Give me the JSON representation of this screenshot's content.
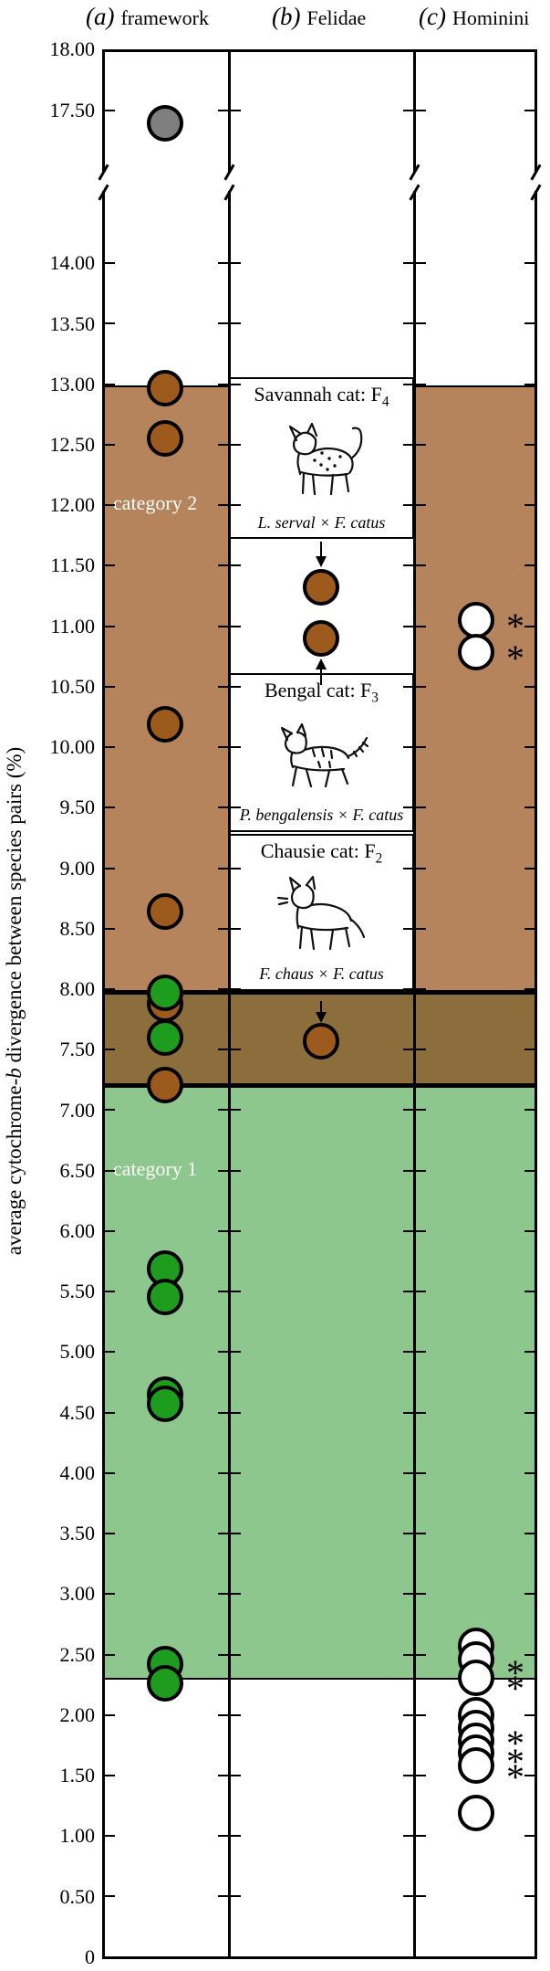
{
  "chart_data": {
    "type": "scatter",
    "title": "",
    "ylabel": "average cytochrome-b divergence between species pairs (%)",
    "ylabel_parts": [
      "average cytochrome-",
      "b",
      " divergence between species pairs (%)"
    ],
    "ylim": [
      0,
      18
    ],
    "axis_break_between": [
      14.6,
      17.0
    ],
    "grid": false,
    "yticks": [
      {
        "v": 18.0,
        "label": "18.00"
      },
      {
        "v": 17.5,
        "label": "17.50"
      },
      {
        "v": 14.0,
        "label": "14.00"
      },
      {
        "v": 13.5,
        "label": "13.50"
      },
      {
        "v": 13.0,
        "label": "13.00"
      },
      {
        "v": 12.5,
        "label": "12.50"
      },
      {
        "v": 12.0,
        "label": "12.00"
      },
      {
        "v": 11.5,
        "label": "11.50"
      },
      {
        "v": 11.0,
        "label": "11.00"
      },
      {
        "v": 10.5,
        "label": "10.50"
      },
      {
        "v": 10.0,
        "label": "10.00"
      },
      {
        "v": 9.5,
        "label": "9.50"
      },
      {
        "v": 9.0,
        "label": "9.00"
      },
      {
        "v": 8.5,
        "label": "8.50"
      },
      {
        "v": 8.0,
        "label": "8.00"
      },
      {
        "v": 7.5,
        "label": "7.50"
      },
      {
        "v": 7.0,
        "label": "7.00"
      },
      {
        "v": 6.5,
        "label": "6.50"
      },
      {
        "v": 6.0,
        "label": "6.00"
      },
      {
        "v": 5.5,
        "label": "5.50"
      },
      {
        "v": 5.0,
        "label": "5.00"
      },
      {
        "v": 4.5,
        "label": "4.50"
      },
      {
        "v": 4.0,
        "label": "4.00"
      },
      {
        "v": 3.5,
        "label": "3.50"
      },
      {
        "v": 3.0,
        "label": "3.00"
      },
      {
        "v": 2.5,
        "label": "2.50"
      },
      {
        "v": 2.0,
        "label": "2.00"
      },
      {
        "v": 1.5,
        "label": "1.50"
      },
      {
        "v": 1.0,
        "label": "1.00"
      },
      {
        "v": 0.5,
        "label": "0.50"
      },
      {
        "v": 0.0,
        "label": "0"
      }
    ],
    "colors": {
      "category2_band": "#b5845c",
      "overlap_band": "#8c6d3c",
      "category1_band": "#8dc78d",
      "brown_point": "#9c5a1d",
      "green_point": "#1e9c1e",
      "gray_point": "#7f7f7f",
      "white_point": "#ffffff"
    },
    "bands": [
      {
        "name": "category 2",
        "label": "category 2",
        "label_v": 12.0,
        "top": 12.98,
        "bottom": 7.975,
        "color_key": "category2_band"
      },
      {
        "name": "overlap",
        "label": "",
        "top": 7.975,
        "bottom": 7.205,
        "color_key": "overlap_band"
      },
      {
        "name": "category 1",
        "label": "category 1",
        "label_v": 6.5,
        "top": 7.205,
        "bottom": 2.3,
        "color_key": "category1_band"
      }
    ],
    "panels": [
      {
        "key": "a",
        "prefix": "(a)",
        "label": "framework",
        "points": [
          {
            "v": 17.4,
            "c": "gray"
          },
          {
            "v": 12.97,
            "c": "brown"
          },
          {
            "v": 12.55,
            "c": "brown"
          },
          {
            "v": 10.19,
            "c": "brown"
          },
          {
            "v": 8.64,
            "c": "brown"
          },
          {
            "v": 7.88,
            "c": "brown"
          },
          {
            "v": 7.97,
            "c": "green"
          },
          {
            "v": 7.6,
            "c": "green"
          },
          {
            "v": 7.21,
            "c": "brown"
          },
          {
            "v": 5.69,
            "c": "green"
          },
          {
            "v": 5.46,
            "c": "green"
          },
          {
            "v": 4.65,
            "c": "green"
          },
          {
            "v": 4.57,
            "c": "green"
          },
          {
            "v": 2.42,
            "c": "green"
          },
          {
            "v": 2.26,
            "c": "green"
          }
        ]
      },
      {
        "key": "b",
        "prefix": "(b)",
        "label": "Felidae",
        "points": [
          {
            "v": 11.32,
            "c": "brown"
          },
          {
            "v": 10.9,
            "c": "brown"
          },
          {
            "v": 7.57,
            "c": "brown"
          }
        ],
        "insets": [
          {
            "title": "Savannah cat: F",
            "subscript": "4",
            "caption": "L. serval × F. catus",
            "icon": "serval-cat",
            "top_v": 13.06,
            "bottom_v": 11.72
          },
          {
            "title": "Bengal cat: F",
            "subscript": "3",
            "caption": "P. bengalensis × F. catus",
            "icon": "bengal-cat",
            "top_v": 10.61,
            "bottom_v": 9.3
          },
          {
            "title": "Chausie cat: F",
            "subscript": "2",
            "caption": "F. chaus × F. catus",
            "icon": "chausie-cat",
            "top_v": 9.285,
            "bottom_v": 7.985
          }
        ],
        "arrows": [
          {
            "dir": "down",
            "from_v": 11.7,
            "tip_v": 11.49
          },
          {
            "dir": "up",
            "tip_v": 10.73,
            "from_v": 10.62
          },
          {
            "dir": "down",
            "from_v": 7.9,
            "tip_v": 7.72
          }
        ]
      },
      {
        "key": "c",
        "prefix": "(c)",
        "label": "Hominini",
        "points": [
          {
            "v": 11.05,
            "c": "white"
          },
          {
            "v": 10.79,
            "c": "white"
          },
          {
            "v": 2.57,
            "c": "white"
          },
          {
            "v": 2.46,
            "c": "white"
          },
          {
            "v": 2.31,
            "c": "white"
          },
          {
            "v": 2.0,
            "c": "white"
          },
          {
            "v": 1.89,
            "c": "white"
          },
          {
            "v": 1.79,
            "c": "white"
          },
          {
            "v": 1.69,
            "c": "white"
          },
          {
            "v": 1.58,
            "c": "white"
          },
          {
            "v": 1.19,
            "c": "white"
          }
        ],
        "asterisks": [
          11.05,
          10.79,
          2.4,
          2.27,
          1.82,
          1.67,
          1.54
        ],
        "asterisk_char": "*"
      }
    ]
  }
}
